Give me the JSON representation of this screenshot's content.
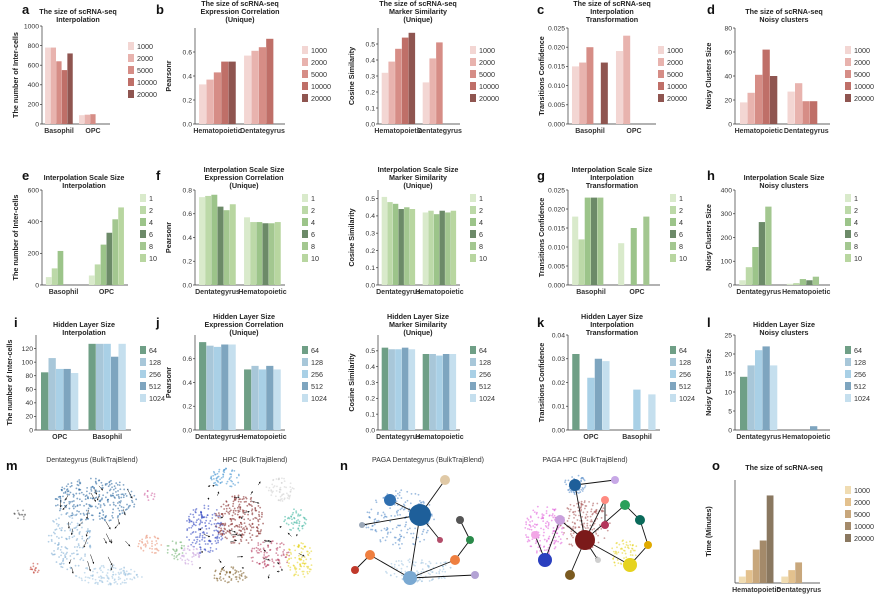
{
  "panel_letters": [
    "a",
    "b",
    "c",
    "d",
    "e",
    "f",
    "g",
    "h",
    "i",
    "j",
    "k",
    "l",
    "m",
    "n",
    "o"
  ],
  "palettes": {
    "red": [
      "#f3d6d3",
      "#e8b3ae",
      "#d68d86",
      "#bf6f68",
      "#8f5550"
    ],
    "green": [
      "#d9eacb",
      "#bcd9a8",
      "#9cc48a",
      "#6c8a68",
      "#a3c790",
      "#b8d6a0"
    ],
    "blue": [
      "#6f9f86",
      "#a8c7d9",
      "#a9d0e6",
      "#7ea5bf",
      "#c5dfee"
    ],
    "tan": [
      "#f0dcb2",
      "#e3c18e",
      "#c8a77c",
      "#a48a6a",
      "#8a7860"
    ]
  },
  "chart_data": [
    {
      "id": "a",
      "type": "bar",
      "title": "The size of scRNA-seq\nInterpolation",
      "ylabel": "The number of Inter-cells",
      "ylim": [
        0,
        1000
      ],
      "yticks": [
        "0",
        "200",
        "400",
        "600",
        "800",
        "1000"
      ],
      "categories": [
        "Basophil",
        "OPC"
      ],
      "palette": "red",
      "series": [
        {
          "name": "1000",
          "values": [
            780,
            90
          ]
        },
        {
          "name": "2000",
          "values": [
            780,
            95
          ]
        },
        {
          "name": "5000",
          "values": [
            640,
            100
          ]
        },
        {
          "name": "10000",
          "values": [
            550,
            0
          ]
        },
        {
          "name": "20000",
          "values": [
            720,
            0
          ]
        }
      ]
    },
    {
      "id": "b1",
      "type": "bar",
      "title": "The size of scRNA-seq\nExpression Correlation\n(Unique)",
      "ylabel": "Pearsonr",
      "ylim": [
        0,
        0.8
      ],
      "yticks": [
        "0.0",
        "0.2",
        "0.4",
        "0.6"
      ],
      "categories": [
        "Hematopoietic",
        "Dentategyrus"
      ],
      "palette": "red",
      "series": [
        {
          "name": "1000",
          "values": [
            0.33,
            0.57
          ]
        },
        {
          "name": "2000",
          "values": [
            0.37,
            0.61
          ]
        },
        {
          "name": "5000",
          "values": [
            0.43,
            0.64
          ]
        },
        {
          "name": "10000",
          "values": [
            0.52,
            0.71
          ]
        },
        {
          "name": "20000",
          "values": [
            0.52,
            0
          ]
        }
      ]
    },
    {
      "id": "b2",
      "type": "bar",
      "title": "The size of scRNA-seq\nMarker Similarity\n(Unique)",
      "ylabel": "Cosine Similarity",
      "ylim": [
        0,
        0.6
      ],
      "yticks": [
        "0.0",
        "0.1",
        "0.2",
        "0.3",
        "0.4",
        "0.5"
      ],
      "categories": [
        "Hematopoietic",
        "Dentategyrus"
      ],
      "palette": "red",
      "series": [
        {
          "name": "1000",
          "values": [
            0.32,
            0.26
          ]
        },
        {
          "name": "2000",
          "values": [
            0.39,
            0.41
          ]
        },
        {
          "name": "5000",
          "values": [
            0.47,
            0.51
          ]
        },
        {
          "name": "10000",
          "values": [
            0.54,
            0
          ]
        },
        {
          "name": "20000",
          "values": [
            0.57,
            0
          ]
        }
      ]
    },
    {
      "id": "c",
      "type": "bar",
      "title": "The size of scRNA-seq\nInterpolation\nTransformation",
      "ylabel": "Transitions Confidence",
      "ylim": [
        0,
        0.025
      ],
      "yticks": [
        "0.000",
        "0.005",
        "0.010",
        "0.015",
        "0.020",
        "0.025"
      ],
      "categories": [
        "Basophil",
        "OPC"
      ],
      "palette": "red",
      "series": [
        {
          "name": "1000",
          "values": [
            0.015,
            0.019
          ]
        },
        {
          "name": "2000",
          "values": [
            0.016,
            0.023
          ]
        },
        {
          "name": "5000",
          "values": [
            0.02,
            0
          ]
        },
        {
          "name": "10000",
          "values": [
            0,
            0
          ]
        },
        {
          "name": "20000",
          "values": [
            0.016,
            0
          ]
        }
      ]
    },
    {
      "id": "d",
      "type": "bar",
      "title": "The size of scRNA-seq\nNoisy clusters",
      "ylabel": "Noisy Clusters Size",
      "ylim": [
        0,
        80
      ],
      "yticks": [
        "0",
        "20",
        "40",
        "60",
        "80"
      ],
      "categories": [
        "Hematopoietic",
        "Dentategyrus"
      ],
      "palette": "red",
      "series": [
        {
          "name": "1000",
          "values": [
            18,
            27
          ]
        },
        {
          "name": "2000",
          "values": [
            26,
            34
          ]
        },
        {
          "name": "5000",
          "values": [
            41,
            19
          ]
        },
        {
          "name": "10000",
          "values": [
            62,
            19
          ]
        },
        {
          "name": "20000",
          "values": [
            40,
            0
          ]
        }
      ]
    },
    {
      "id": "e",
      "type": "bar",
      "title": "Interpolation Scale Size\nInterpolation",
      "ylabel": "The number of Inter-cells",
      "ylim": [
        0,
        600
      ],
      "yticks": [
        "0",
        "200",
        "400",
        "600"
      ],
      "categories": [
        "Basophil",
        "OPC"
      ],
      "palette": "green",
      "series": [
        {
          "name": "1",
          "values": [
            50,
            60
          ]
        },
        {
          "name": "2",
          "values": [
            105,
            130
          ]
        },
        {
          "name": "4",
          "values": [
            215,
            255
          ]
        },
        {
          "name": "6",
          "values": [
            0,
            330
          ]
        },
        {
          "name": "8",
          "values": [
            0,
            415
          ]
        },
        {
          "name": "10",
          "values": [
            0,
            490
          ]
        }
      ]
    },
    {
      "id": "f1",
      "type": "bar",
      "title": "Interpolation Scale Size\nExpression Correlation\n(Unique)",
      "ylabel": "Pearsonr",
      "ylim": [
        0,
        0.8
      ],
      "yticks": [
        "0.0",
        "0.2",
        "0.4",
        "0.6",
        "0.8"
      ],
      "categories": [
        "Dentategyrus",
        "Hematopoietic"
      ],
      "palette": "green",
      "series": [
        {
          "name": "1",
          "values": [
            0.74,
            0.57
          ]
        },
        {
          "name": "2",
          "values": [
            0.75,
            0.53
          ]
        },
        {
          "name": "4",
          "values": [
            0.76,
            0.53
          ]
        },
        {
          "name": "6",
          "values": [
            0.66,
            0.52
          ]
        },
        {
          "name": "8",
          "values": [
            0.63,
            0.52
          ]
        },
        {
          "name": "10",
          "values": [
            0.68,
            0.53
          ]
        }
      ]
    },
    {
      "id": "f2",
      "type": "bar",
      "title": "Interpolation Scale Size\nMarker Similarity\n(Unique)",
      "ylabel": "Cosine Similarity",
      "ylim": [
        0,
        0.55
      ],
      "yticks": [
        "0.0",
        "0.1",
        "0.2",
        "0.3",
        "0.4",
        "0.5"
      ],
      "categories": [
        "Dentategyrus",
        "Hematopoietic"
      ],
      "palette": "green",
      "series": [
        {
          "name": "1",
          "values": [
            0.51,
            0.42
          ]
        },
        {
          "name": "2",
          "values": [
            0.48,
            0.43
          ]
        },
        {
          "name": "4",
          "values": [
            0.47,
            0.41
          ]
        },
        {
          "name": "6",
          "values": [
            0.44,
            0.43
          ]
        },
        {
          "name": "8",
          "values": [
            0.45,
            0.42
          ]
        },
        {
          "name": "10",
          "values": [
            0.44,
            0.43
          ]
        }
      ]
    },
    {
      "id": "g",
      "type": "bar",
      "title": "Interpolation Scale Size\nInterpolation\nTransformation",
      "ylabel": "Transitions Confidence",
      "ylim": [
        0,
        0.025
      ],
      "yticks": [
        "0.000",
        "0.005",
        "0.010",
        "0.015",
        "0.020",
        "0.025"
      ],
      "categories": [
        "Basophil",
        "OPC"
      ],
      "palette": "green",
      "series": [
        {
          "name": "1",
          "values": [
            0.018,
            0.011
          ]
        },
        {
          "name": "2",
          "values": [
            0.012,
            0
          ]
        },
        {
          "name": "4",
          "values": [
            0.023,
            0.015
          ]
        },
        {
          "name": "6",
          "values": [
            0.023,
            0
          ]
        },
        {
          "name": "8",
          "values": [
            0.023,
            0.018
          ]
        },
        {
          "name": "10",
          "values": [
            0,
            0
          ]
        }
      ]
    },
    {
      "id": "h",
      "type": "bar",
      "title": "Interpolation Scale Size\nNoisy clusters",
      "ylabel": "Noisy Clusters Size",
      "ylim": [
        0,
        400
      ],
      "yticks": [
        "0",
        "100",
        "200",
        "300",
        "400"
      ],
      "categories": [
        "Dentategyrus",
        "Hematopoietic"
      ],
      "palette": "green",
      "series": [
        {
          "name": "1",
          "values": [
            20,
            5
          ]
        },
        {
          "name": "2",
          "values": [
            75,
            8
          ]
        },
        {
          "name": "4",
          "values": [
            160,
            25
          ]
        },
        {
          "name": "6",
          "values": [
            265,
            20
          ]
        },
        {
          "name": "8",
          "values": [
            330,
            35
          ]
        },
        {
          "name": "10",
          "values": [
            0,
            0
          ]
        }
      ]
    },
    {
      "id": "i",
      "type": "bar",
      "title": "Hidden Layer Size\nInterpolation",
      "ylabel": "The number of Inter-cells",
      "ylim": [
        0,
        140
      ],
      "yticks": [
        "0",
        "20",
        "40",
        "60",
        "80",
        "100",
        "120"
      ],
      "categories": [
        "OPC",
        "Basophil"
      ],
      "palette": "blue",
      "series": [
        {
          "name": "64",
          "values": [
            85,
            127
          ]
        },
        {
          "name": "128",
          "values": [
            106,
            127
          ]
        },
        {
          "name": "256",
          "values": [
            90,
            127
          ]
        },
        {
          "name": "512",
          "values": [
            90,
            108
          ]
        },
        {
          "name": "1024",
          "values": [
            84,
            127
          ]
        }
      ]
    },
    {
      "id": "j1",
      "type": "bar",
      "title": "Hidden Layer Size\nExpression Correlation\n(Unique)",
      "ylabel": "Pearsonr",
      "ylim": [
        0,
        0.8
      ],
      "yticks": [
        "0.0",
        "0.2",
        "0.4",
        "0.6"
      ],
      "categories": [
        "Dentategyrus",
        "Hematopoietic"
      ],
      "palette": "blue",
      "series": [
        {
          "name": "64",
          "values": [
            0.74,
            0.51
          ]
        },
        {
          "name": "128",
          "values": [
            0.71,
            0.54
          ]
        },
        {
          "name": "256",
          "values": [
            0.7,
            0.51
          ]
        },
        {
          "name": "512",
          "values": [
            0.72,
            0.54
          ]
        },
        {
          "name": "1024",
          "values": [
            0.72,
            0.51
          ]
        }
      ]
    },
    {
      "id": "j2",
      "type": "bar",
      "title": "Hidden Layer Size\nMarker Similarity\n(Unique)",
      "ylabel": "Cosine Similarity",
      "ylim": [
        0,
        0.6
      ],
      "yticks": [
        "0.0",
        "0.1",
        "0.2",
        "0.3",
        "0.4",
        "0.5"
      ],
      "categories": [
        "Dentategyrus",
        "Hematopoietic"
      ],
      "palette": "blue",
      "series": [
        {
          "name": "64",
          "values": [
            0.52,
            0.48
          ]
        },
        {
          "name": "128",
          "values": [
            0.51,
            0.48
          ]
        },
        {
          "name": "256",
          "values": [
            0.51,
            0.47
          ]
        },
        {
          "name": "512",
          "values": [
            0.52,
            0.48
          ]
        },
        {
          "name": "1024",
          "values": [
            0.51,
            0.48
          ]
        }
      ]
    },
    {
      "id": "k",
      "type": "bar",
      "title": "Hidden Layer Size\nInterpolation\nTransformation",
      "ylabel": "Transitions Confidence",
      "ylim": [
        0,
        0.04
      ],
      "yticks": [
        "0.00",
        "0.01",
        "0.02",
        "0.03",
        "0.04"
      ],
      "categories": [
        "OPC",
        "Basophil"
      ],
      "palette": "blue",
      "series": [
        {
          "name": "64",
          "values": [
            0.032,
            0
          ]
        },
        {
          "name": "128",
          "values": [
            0,
            0
          ]
        },
        {
          "name": "256",
          "values": [
            0.022,
            0.017
          ]
        },
        {
          "name": "512",
          "values": [
            0.03,
            0
          ]
        },
        {
          "name": "1024",
          "values": [
            0.029,
            0.015
          ]
        }
      ]
    },
    {
      "id": "l",
      "type": "bar",
      "title": "Hidden Layer Size\nNoisy clusters",
      "ylabel": "Noisy Clusters Size",
      "ylim": [
        0,
        25
      ],
      "yticks": [
        "0",
        "5",
        "10",
        "15",
        "20",
        "25"
      ],
      "categories": [
        "Dentategyrus",
        "Hematopoietic"
      ],
      "palette": "blue",
      "series": [
        {
          "name": "64",
          "values": [
            14,
            0
          ]
        },
        {
          "name": "128",
          "values": [
            17,
            0
          ]
        },
        {
          "name": "256",
          "values": [
            21,
            0
          ]
        },
        {
          "name": "512",
          "values": [
            22,
            1
          ]
        },
        {
          "name": "1024",
          "values": [
            17,
            0
          ]
        }
      ]
    },
    {
      "id": "o",
      "type": "bar",
      "title": "The size of scRNA-seq",
      "ylabel": "Time (Minutes)",
      "ylim": [
        0,
        8000
      ],
      "yticks": [],
      "categories": [
        "Hematopoietic",
        "Dentategyrus"
      ],
      "palette": "tan",
      "series": [
        {
          "name": "1000",
          "values": [
            500,
            500
          ]
        },
        {
          "name": "2000",
          "values": [
            1000,
            1000
          ]
        },
        {
          "name": "5000",
          "values": [
            2600,
            1600
          ]
        },
        {
          "name": "10000",
          "values": [
            3300,
            0
          ]
        },
        {
          "name": "20000",
          "values": [
            6800,
            0
          ]
        }
      ]
    }
  ],
  "embeddings": {
    "m1": {
      "title": "Dentategyrus (BulkTrajBlend)"
    },
    "m2": {
      "title": "HPC (BulkTrajBlend)"
    },
    "n1": {
      "title": "PAGA Dentategyrus (BulkTrajBlend)"
    },
    "n2": {
      "title": "PAGA HPC (BulkTrajBlend)"
    }
  }
}
